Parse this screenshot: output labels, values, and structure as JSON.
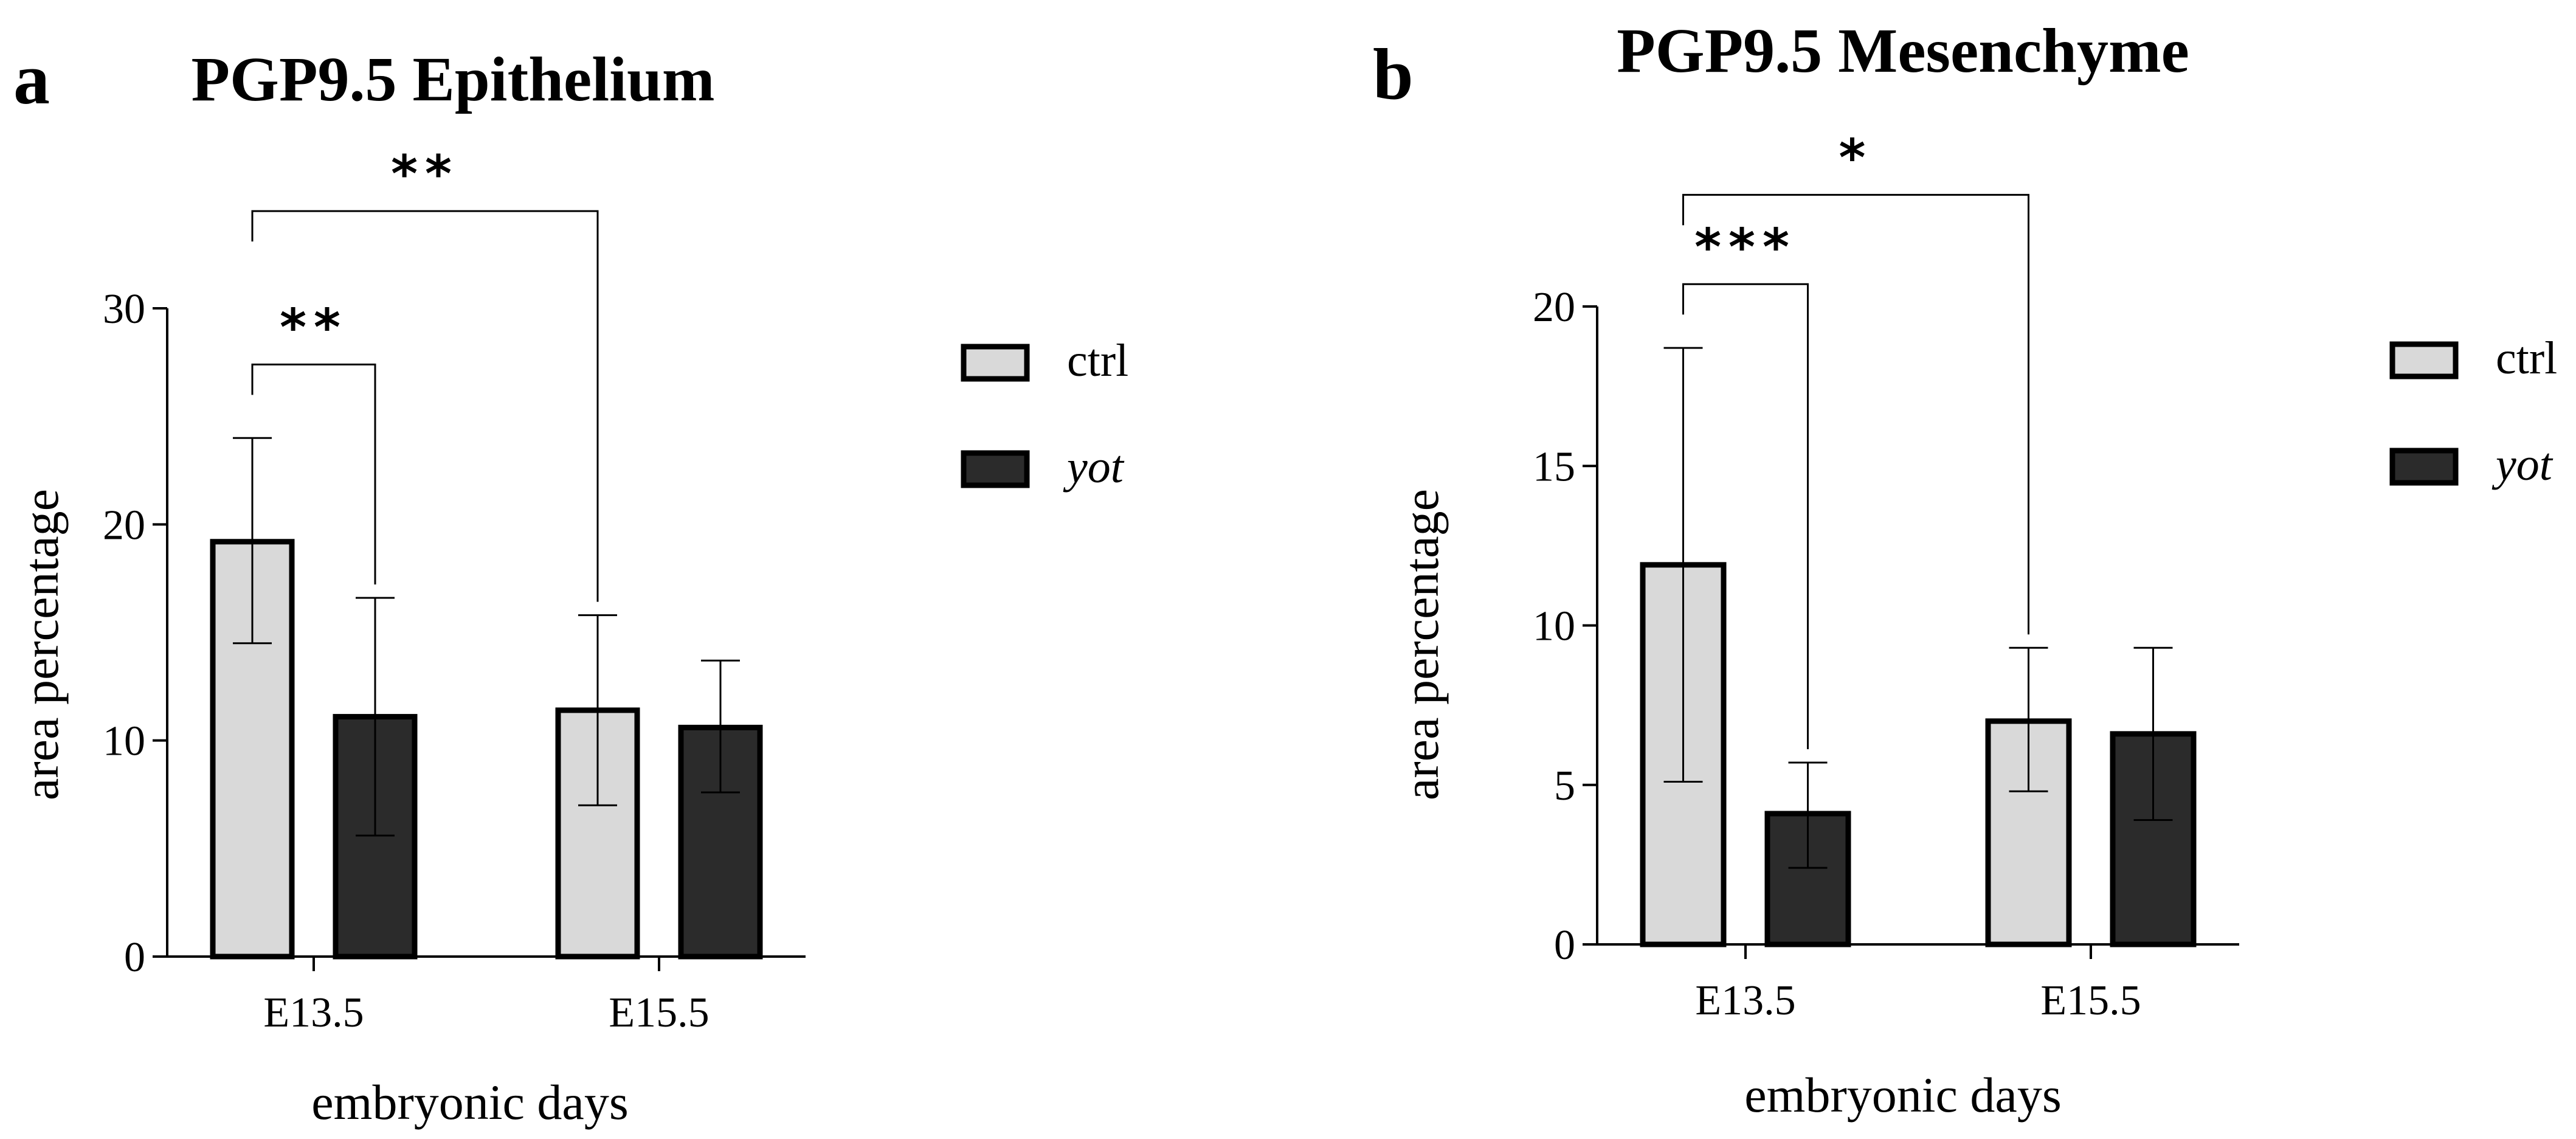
{
  "figure": {
    "panels": [
      "a",
      "b"
    ]
  },
  "chart_data": [
    {
      "type": "bar",
      "panel_label": "a",
      "title": "PGP9.5 Epithelium",
      "xlabel": "embryonic days",
      "ylabel": "area percentage",
      "categories": [
        "E13.5",
        "E15.5"
      ],
      "ylim": [
        0,
        30
      ],
      "yticks": [
        0,
        10,
        20,
        30
      ],
      "yticks_labels": [
        "0",
        "10",
        "20",
        "30"
      ],
      "series": [
        {
          "name": "ctrl",
          "italic": false,
          "color": "#d9d9d9",
          "values": [
            19.2,
            11.4
          ],
          "err_low": [
            14.5,
            7.0
          ],
          "err_high": [
            24.0,
            15.8
          ]
        },
        {
          "name": "yot",
          "italic": true,
          "color": "#2b2b2b",
          "values": [
            11.1,
            10.6
          ],
          "err_low": [
            5.6,
            7.6
          ],
          "err_high": [
            16.6,
            13.7
          ]
        }
      ],
      "significance": [
        {
          "label": "**",
          "from": {
            "category": 0,
            "series": 0
          },
          "to": {
            "category": 1,
            "series": 0
          },
          "level": 34.5
        },
        {
          "label": "**",
          "from": {
            "category": 0,
            "series": 0
          },
          "to": {
            "category": 0,
            "series": 1
          },
          "level": 27.4
        }
      ],
      "legend": [
        "ctrl",
        "yot"
      ],
      "legend_position": "right"
    },
    {
      "type": "bar",
      "panel_label": "b",
      "title": "PGP9.5 Mesenchyme",
      "xlabel": "embryonic days",
      "ylabel": "area percentage",
      "categories": [
        "E13.5",
        "E15.5"
      ],
      "ylim": [
        0,
        20
      ],
      "yticks": [
        0,
        5,
        10,
        15,
        20
      ],
      "yticks_labels": [
        "0",
        "5",
        "10",
        "15",
        "20"
      ],
      "series": [
        {
          "name": "ctrl",
          "italic": false,
          "color": "#d9d9d9",
          "values": [
            11.9,
            7.0
          ],
          "err_low": [
            5.1,
            4.8
          ],
          "err_high": [
            18.7,
            9.3
          ]
        },
        {
          "name": "yot",
          "italic": true,
          "color": "#2b2b2b",
          "values": [
            4.1,
            6.6
          ],
          "err_low": [
            2.4,
            3.9
          ],
          "err_high": [
            5.7,
            9.3
          ]
        }
      ],
      "significance": [
        {
          "label": "*",
          "from": {
            "category": 0,
            "series": 0
          },
          "to": {
            "category": 1,
            "series": 0
          },
          "level": 23.5
        },
        {
          "label": "***",
          "from": {
            "category": 0,
            "series": 0
          },
          "to": {
            "category": 0,
            "series": 1
          },
          "level": 20.7
        }
      ],
      "legend": [
        "ctrl",
        "yot"
      ],
      "legend_position": "right"
    }
  ]
}
